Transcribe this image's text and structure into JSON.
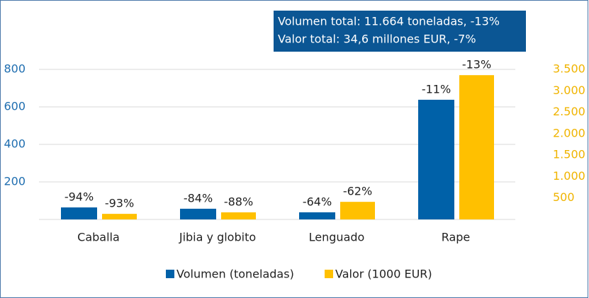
{
  "chart_data": {
    "type": "bar",
    "annotation": [
      "Volumen total: 11.664 toneladas, -13%",
      "Valor total: 34,6 millones EUR, -7%"
    ],
    "categories": [
      "Caballa",
      "Jibia y globito",
      "Lenguado",
      "Rape"
    ],
    "series": [
      {
        "name": "Volumen (toneladas)",
        "color": "#0061a8",
        "values": [
          64,
          57,
          38,
          638
        ],
        "changes": [
          "-94%",
          "-84%",
          "-64%",
          "-11%"
        ]
      },
      {
        "name": "Valor (1000 EUR)",
        "color": "#ffc000",
        "axis": "y2",
        "values": [
          130,
          165,
          410,
          3365
        ],
        "changes": [
          "-93%",
          "-88%",
          "-62%",
          "-13%"
        ]
      }
    ],
    "ylim": [
      0,
      800
    ],
    "yticks": [
      200,
      400,
      600,
      800
    ],
    "y2lim": [
      0,
      3500
    ],
    "y2ticks": [
      500,
      {
        "value": 1000,
        "label": "1.000"
      },
      {
        "value": 1500,
        "label": "1.500"
      },
      {
        "value": 2000,
        "label": "2.000"
      },
      {
        "value": 2500,
        "label": "2.500"
      },
      {
        "value": 3000,
        "label": "3.000"
      },
      {
        "value": 3500,
        "label": "3.500"
      }
    ],
    "grid": true,
    "legend": "bottom"
  }
}
